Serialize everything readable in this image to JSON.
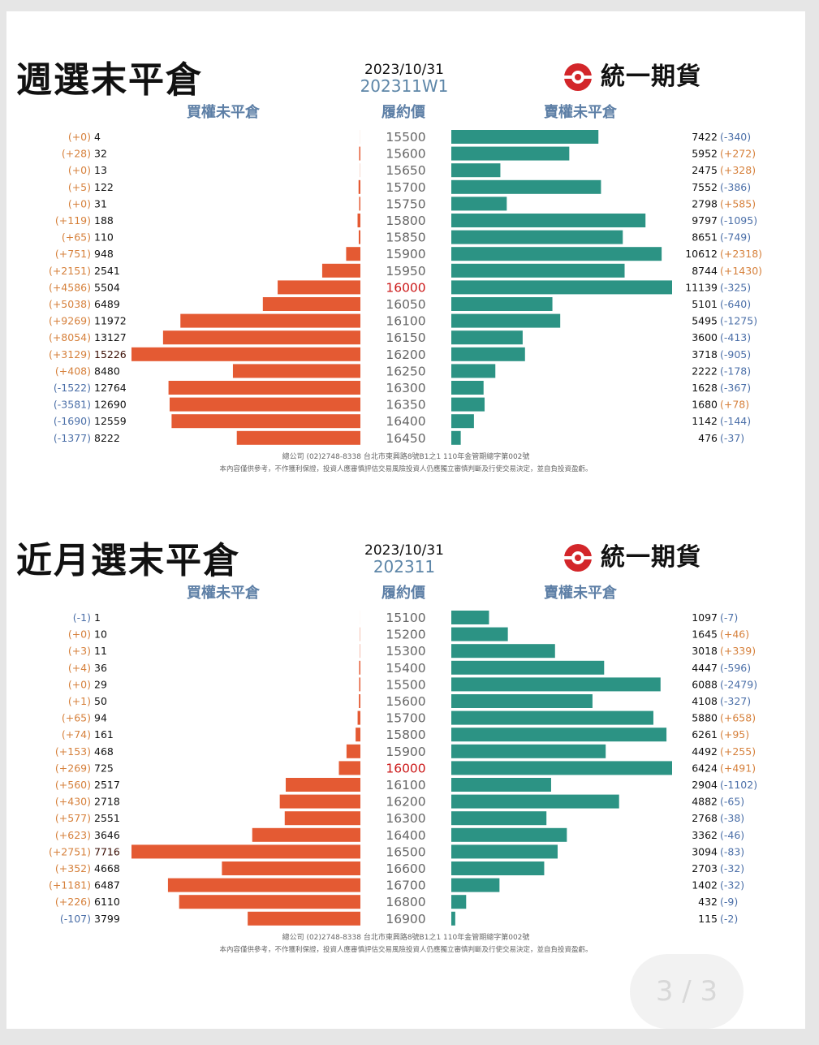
{
  "panels": [
    {
      "title": "週選末平倉",
      "date": "2023/10/31",
      "period": "202311W1",
      "brand": "統一期貨",
      "call_header": "買權未平倉",
      "strike_header": "履約價",
      "put_header": "賣權未平倉",
      "footer_line1": "總公司 (02)2748-8338 台北市東興路8號B1之1 110年金管期總字第002號",
      "footer_line2": "本內容僅供參考，不作獲利保證，投資人應審慎評估交易風險投資人仍應獨立審慎判斷及行使交易決定，並自負投資盈虧。",
      "chart_data": {
        "type": "bar",
        "orientation": "horizontal-butterfly",
        "atm_strike": "16000",
        "highlight_call_strike": "16200",
        "categories": [
          "15500",
          "15600",
          "15650",
          "15700",
          "15750",
          "15800",
          "15850",
          "15900",
          "15950",
          "16000",
          "16050",
          "16100",
          "16150",
          "16200",
          "16250",
          "16300",
          "16350",
          "16400",
          "16450"
        ],
        "series": [
          {
            "name": "買權未平倉",
            "values": [
              4,
              32,
              13,
              122,
              31,
              188,
              110,
              948,
              2541,
              5504,
              6489,
              11972,
              13127,
              15226,
              8480,
              12764,
              12690,
              12559,
              8222
            ],
            "changes": [
              "(+0)",
              "(+28)",
              "(+0)",
              "(+5)",
              "(+0)",
              "(+119)",
              "(+65)",
              "(+751)",
              "(+2151)",
              "(+4586)",
              "(+5038)",
              "(+9269)",
              "(+8054)",
              "(+3129)",
              "(+408)",
              "(-1522)",
              "(-3581)",
              "(-1690)",
              "(-1377)"
            ]
          },
          {
            "name": "賣權未平倉",
            "values": [
              7422,
              5952,
              2475,
              7552,
              2798,
              9797,
              8651,
              10612,
              8744,
              11139,
              5101,
              5495,
              3600,
              3718,
              2222,
              1628,
              1680,
              1142,
              476
            ],
            "changes": [
              "(-340)",
              "(+272)",
              "(+328)",
              "(-386)",
              "(+585)",
              "(-1095)",
              "(-749)",
              "(+2318)",
              "(+1430)",
              "(-325)",
              "(-640)",
              "(-1275)",
              "(-413)",
              "(-905)",
              "(-178)",
              "(-367)",
              "(+78)",
              "(-144)",
              "(-37)"
            ]
          }
        ],
        "call_max": 15226,
        "put_max": 11139
      }
    },
    {
      "title": "近月選末平倉",
      "date": "2023/10/31",
      "period": "202311",
      "brand": "統一期貨",
      "call_header": "買權未平倉",
      "strike_header": "履約價",
      "put_header": "賣權未平倉",
      "footer_line1": "總公司 (02)2748-8338 台北市東興路8號B1之1 110年金管期總字第002號",
      "footer_line2": "本內容僅供參考，不作獲利保證，投資人應審慎評估交易風險投資人仍應獨立審慎判斷及行使交易決定，並自負投資盈虧。",
      "chart_data": {
        "type": "bar",
        "orientation": "horizontal-butterfly",
        "atm_strike": "16000",
        "highlight_call_strike": "16500",
        "categories": [
          "15100",
          "15200",
          "15300",
          "15400",
          "15500",
          "15600",
          "15700",
          "15800",
          "15900",
          "16000",
          "16100",
          "16200",
          "16300",
          "16400",
          "16500",
          "16600",
          "16700",
          "16800",
          "16900"
        ],
        "series": [
          {
            "name": "買權未平倉",
            "values": [
              1,
              10,
              11,
              36,
              29,
              50,
              94,
              161,
              468,
              725,
              2517,
              2718,
              2551,
              3646,
              7716,
              4668,
              6487,
              6110,
              3799
            ],
            "changes": [
              "(-1)",
              "(+0)",
              "(+3)",
              "(+4)",
              "(+0)",
              "(+1)",
              "(+65)",
              "(+74)",
              "(+153)",
              "(+269)",
              "(+560)",
              "(+430)",
              "(+577)",
              "(+623)",
              "(+2751)",
              "(+352)",
              "(+1181)",
              "(+226)",
              "(-107)"
            ]
          },
          {
            "name": "賣權未平倉",
            "values": [
              1097,
              1645,
              3018,
              4447,
              6088,
              4108,
              5880,
              6261,
              4492,
              6424,
              2904,
              4882,
              2768,
              3362,
              3094,
              2703,
              1402,
              432,
              115
            ],
            "changes": [
              "(-7)",
              "(+46)",
              "(+339)",
              "(-596)",
              "(-2479)",
              "(-327)",
              "(+658)",
              "(+95)",
              "(+255)",
              "(+491)",
              "(-1102)",
              "(-65)",
              "(-38)",
              "(-46)",
              "(-83)",
              "(-32)",
              "(-32)",
              "(-9)",
              "(-2)"
            ]
          }
        ],
        "call_max": 7716,
        "put_max": 6424
      }
    }
  ],
  "pager": "3 / 3",
  "colors": {
    "call_bar": "#e45a33",
    "put_bar": "#2c9384",
    "positive_change": "#d6803b",
    "negative_change": "#4b6fa8",
    "atm_strike": "#cc1a1a",
    "strike_text": "#666666",
    "header_text": "#5d7fa6",
    "period_text": "#5d86a8"
  }
}
